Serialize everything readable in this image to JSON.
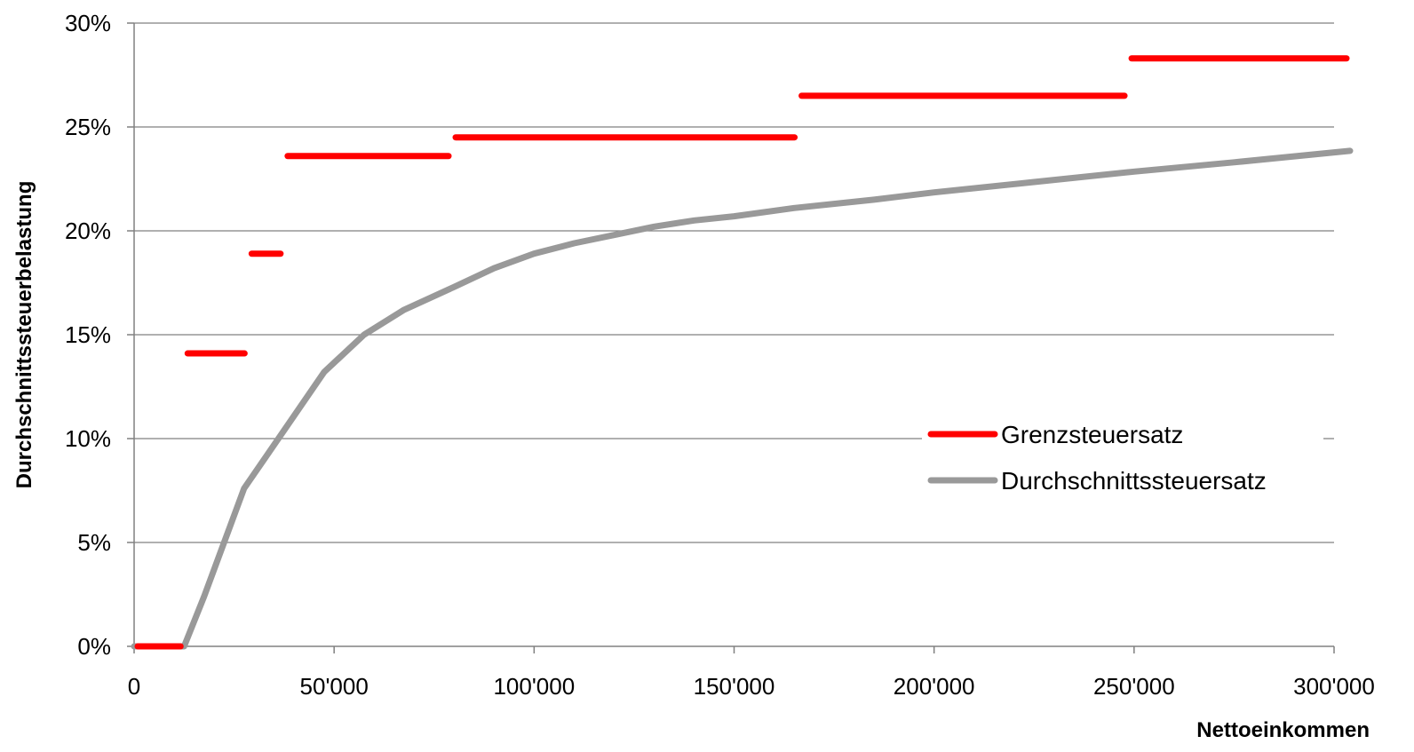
{
  "chart_data": {
    "type": "line",
    "title": "",
    "xlabel": "Nettoeinkommen",
    "ylabel": "Durchschnittssteuerbelastung",
    "xlim": [
      0,
      300000
    ],
    "ylim": [
      0,
      30
    ],
    "x_ticks": [
      {
        "value": 0,
        "label": "0"
      },
      {
        "value": 50000,
        "label": "50'000"
      },
      {
        "value": 100000,
        "label": "100'000"
      },
      {
        "value": 150000,
        "label": "150'000"
      },
      {
        "value": 200000,
        "label": "200'000"
      },
      {
        "value": 250000,
        "label": "250'000"
      },
      {
        "value": 300000,
        "label": "300'000"
      }
    ],
    "y_ticks": [
      {
        "value": 0,
        "label": "0%"
      },
      {
        "value": 5,
        "label": "5%"
      },
      {
        "value": 10,
        "label": "10%"
      },
      {
        "value": 15,
        "label": "15%"
      },
      {
        "value": 20,
        "label": "20%"
      },
      {
        "value": 25,
        "label": "25%"
      },
      {
        "value": 30,
        "label": "30%"
      }
    ],
    "grid": "horizontal",
    "legend_position": "center-right",
    "series": [
      {
        "name": "Grenzsteuersatz",
        "color": "#ff0000",
        "style": "step",
        "segments": [
          {
            "x_start": 0,
            "x_end": 12500,
            "y": 0
          },
          {
            "x_start": 12500,
            "x_end": 28500,
            "y": 14.1
          },
          {
            "x_start": 28500,
            "x_end": 37500,
            "y": 18.9
          },
          {
            "x_start": 37500,
            "x_end": 79500,
            "y": 23.6
          },
          {
            "x_start": 79500,
            "x_end": 166000,
            "y": 24.5
          },
          {
            "x_start": 166000,
            "x_end": 248500,
            "y": 26.5
          },
          {
            "x_start": 248500,
            "x_end": 304000,
            "y": 28.3
          }
        ]
      },
      {
        "name": "Durchschnittssteuersatz",
        "color": "#999999",
        "style": "line",
        "points": [
          {
            "x": 0,
            "y": 0
          },
          {
            "x": 12500,
            "y": 0
          },
          {
            "x": 17500,
            "y": 2.4
          },
          {
            "x": 22500,
            "y": 5.0
          },
          {
            "x": 27500,
            "y": 7.6
          },
          {
            "x": 32500,
            "y": 9.0
          },
          {
            "x": 37500,
            "y": 10.4
          },
          {
            "x": 47500,
            "y": 13.2
          },
          {
            "x": 57500,
            "y": 15.0
          },
          {
            "x": 67500,
            "y": 16.2
          },
          {
            "x": 80000,
            "y": 17.3
          },
          {
            "x": 90000,
            "y": 18.2
          },
          {
            "x": 100000,
            "y": 18.9
          },
          {
            "x": 110000,
            "y": 19.4
          },
          {
            "x": 120000,
            "y": 19.8
          },
          {
            "x": 130000,
            "y": 20.2
          },
          {
            "x": 140000,
            "y": 20.5
          },
          {
            "x": 150000,
            "y": 20.7
          },
          {
            "x": 165000,
            "y": 21.1
          },
          {
            "x": 185000,
            "y": 21.5
          },
          {
            "x": 200000,
            "y": 21.85
          },
          {
            "x": 225000,
            "y": 22.35
          },
          {
            "x": 250000,
            "y": 22.85
          },
          {
            "x": 275000,
            "y": 23.3
          },
          {
            "x": 304000,
            "y": 23.85
          }
        ]
      }
    ]
  }
}
